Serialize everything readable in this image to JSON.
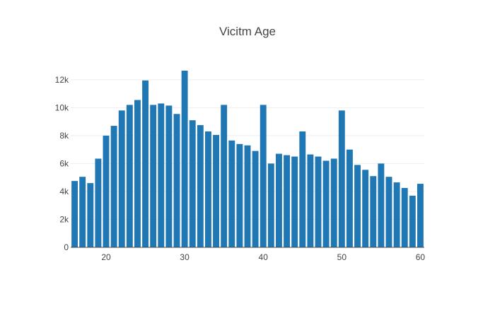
{
  "chart_data": {
    "type": "bar",
    "title": "Vicitm Age",
    "xlabel": "",
    "ylabel": "",
    "bar_color": "#1f77b4",
    "x": [
      16,
      17,
      18,
      19,
      20,
      21,
      22,
      23,
      24,
      25,
      26,
      27,
      28,
      29,
      30,
      31,
      32,
      33,
      34,
      35,
      36,
      37,
      38,
      39,
      40,
      41,
      42,
      43,
      44,
      45,
      46,
      47,
      48,
      49,
      50,
      51,
      52,
      53,
      54,
      55,
      56,
      57,
      58,
      59,
      60
    ],
    "values": [
      4750,
      5050,
      4600,
      6350,
      8000,
      8700,
      9800,
      10200,
      10550,
      11950,
      10200,
      10300,
      10150,
      9550,
      12650,
      9100,
      8750,
      8300,
      8050,
      10200,
      7650,
      7400,
      7300,
      6900,
      10200,
      6000,
      6700,
      6600,
      6500,
      8300,
      6650,
      6500,
      6200,
      6350,
      9800,
      7000,
      5900,
      5550,
      5100,
      6000,
      5050,
      4650,
      4250,
      3700,
      4550
    ],
    "xlim": [
      15.5,
      60.5
    ],
    "ylim": [
      0,
      12650
    ],
    "x_ticks": [
      20,
      30,
      40,
      50,
      60
    ],
    "y_ticks": [
      0,
      2000,
      4000,
      6000,
      8000,
      10000,
      12000
    ],
    "y_tick_labels": [
      "0",
      "2k",
      "4k",
      "6k",
      "8k",
      "10k",
      "12k"
    ],
    "grid": true
  }
}
